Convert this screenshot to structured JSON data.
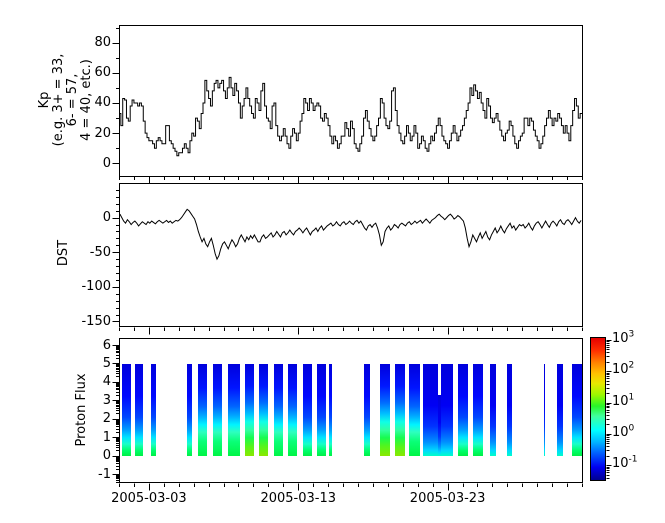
{
  "figure": {
    "background": "#ffffff",
    "line_color": "#000000",
    "x_axis": {
      "tick_labels": [
        "2005-03-03",
        "2005-03-13",
        "2005-03-23"
      ],
      "major_days": [
        2,
        12,
        22
      ],
      "minor_every_days": 1,
      "n_days": 31,
      "x_start": "2005-03-01",
      "x_end": "2005-04-01"
    }
  },
  "chart_data": [
    {
      "type": "line",
      "panel": "kp",
      "ylabel_lines": [
        "Kp",
        "(e.g. 3+ = 33,",
        "6- = 57,",
        "4 = 40, etc.)"
      ],
      "yticks": [
        0,
        20,
        40,
        60,
        80
      ],
      "ylim": [
        -8.4,
        91.7
      ],
      "step_hours": 3,
      "line_style": "step",
      "values": [
        33,
        25,
        43,
        42,
        30,
        28,
        38,
        42,
        40,
        40,
        38,
        40,
        38,
        28,
        20,
        17,
        15,
        15,
        13,
        10,
        15,
        17,
        15,
        13,
        13,
        25,
        25,
        15,
        13,
        10,
        8,
        5,
        7,
        7,
        10,
        13,
        10,
        7,
        15,
        20,
        18,
        30,
        28,
        23,
        33,
        40,
        55,
        48,
        43,
        38,
        48,
        53,
        55,
        50,
        53,
        55,
        48,
        43,
        50,
        57,
        50,
        45,
        53,
        48,
        40,
        30,
        38,
        43,
        50,
        43,
        38,
        33,
        30,
        43,
        40,
        35,
        48,
        53,
        38,
        30,
        28,
        23,
        38,
        40,
        25,
        18,
        15,
        18,
        23,
        18,
        13,
        10,
        18,
        23,
        20,
        15,
        20,
        28,
        33,
        43,
        40,
        35,
        43,
        40,
        35,
        38,
        40,
        38,
        30,
        28,
        33,
        30,
        25,
        18,
        13,
        18,
        15,
        10,
        13,
        18,
        18,
        27,
        23,
        18,
        28,
        23,
        13,
        10,
        8,
        13,
        18,
        30,
        35,
        28,
        23,
        18,
        15,
        18,
        25,
        30,
        43,
        40,
        30,
        25,
        23,
        28,
        48,
        50,
        35,
        25,
        20,
        15,
        13,
        18,
        25,
        20,
        15,
        18,
        25,
        20,
        10,
        13,
        18,
        15,
        10,
        8,
        13,
        18,
        15,
        20,
        25,
        30,
        25,
        18,
        15,
        13,
        10,
        15,
        20,
        25,
        20,
        15,
        18,
        22,
        25,
        30,
        35,
        40,
        50,
        45,
        52,
        48,
        43,
        47,
        40,
        35,
        30,
        43,
        38,
        30,
        27,
        30,
        33,
        28,
        22,
        18,
        15,
        20,
        22,
        28,
        25,
        18,
        13,
        10,
        15,
        18,
        20,
        30,
        30,
        25,
        30,
        28,
        22,
        18,
        15,
        10,
        13,
        18,
        25,
        30,
        35,
        30,
        25,
        30,
        28,
        33,
        30,
        25,
        20,
        25,
        20,
        15,
        25,
        35,
        43,
        38,
        30,
        33
      ]
    },
    {
      "type": "line",
      "panel": "dst",
      "ylabel": "DST",
      "yticks": [
        0,
        -50,
        -100,
        -150
      ],
      "ylim": [
        -158,
        50
      ],
      "step_hours": 3,
      "line_style": "line",
      "values": [
        5,
        0,
        -5,
        -8,
        -3,
        -6,
        -10,
        -7,
        -5,
        -8,
        -12,
        -9,
        -6,
        -8,
        -10,
        -6,
        -8,
        -5,
        -7,
        -9,
        -6,
        -4,
        -6,
        -8,
        -6,
        -4,
        -7,
        -5,
        -8,
        -6,
        -4,
        -5,
        -3,
        0,
        4,
        8,
        12,
        10,
        6,
        2,
        -2,
        -10,
        -20,
        -28,
        -35,
        -30,
        -38,
        -42,
        -35,
        -30,
        -40,
        -52,
        -60,
        -55,
        -45,
        -38,
        -35,
        -40,
        -45,
        -38,
        -32,
        -36,
        -42,
        -38,
        -30,
        -25,
        -30,
        -35,
        -28,
        -32,
        -26,
        -30,
        -25,
        -30,
        -35,
        -35,
        -28,
        -25,
        -30,
        -28,
        -25,
        -22,
        -28,
        -25,
        -20,
        -24,
        -28,
        -22,
        -20,
        -25,
        -22,
        -18,
        -22,
        -25,
        -20,
        -18,
        -15,
        -18,
        -22,
        -18,
        -15,
        -20,
        -25,
        -20,
        -18,
        -15,
        -20,
        -15,
        -12,
        -18,
        -15,
        -12,
        -10,
        -8,
        -12,
        -10,
        -6,
        -10,
        -12,
        -8,
        -6,
        -10,
        -8,
        -5,
        -8,
        -10,
        -6,
        -4,
        -8,
        -5,
        -10,
        -15,
        -18,
        -12,
        -10,
        -14,
        -10,
        -8,
        -15,
        -25,
        -40,
        -35,
        -20,
        -15,
        -12,
        -18,
        -15,
        -10,
        -12,
        -15,
        -10,
        -8,
        -10,
        -12,
        -8,
        -6,
        -10,
        -8,
        -5,
        -8,
        -6,
        -4,
        -8,
        -5,
        -2,
        -5,
        -8,
        -4,
        -2,
        0,
        3,
        5,
        2,
        0,
        -3,
        0,
        3,
        5,
        2,
        -2,
        0,
        3,
        1,
        -2,
        -5,
        -15,
        -30,
        -42,
        -35,
        -25,
        -30,
        -35,
        -28,
        -22,
        -30,
        -25,
        -20,
        -28,
        -32,
        -25,
        -20,
        -15,
        -22,
        -18,
        -12,
        -18,
        -22,
        -16,
        -12,
        -8,
        -15,
        -12,
        -18,
        -14,
        -10,
        -12,
        -10,
        -15,
        -12,
        -8,
        -14,
        -18,
        -12,
        -8,
        -6,
        -10,
        -15,
        -10,
        -5,
        -10,
        -14,
        -8,
        -5,
        -8,
        -12,
        -6,
        -3,
        -8,
        -10,
        -5,
        -3,
        -6,
        -10,
        -5,
        0,
        -5,
        -8,
        -4
      ]
    },
    {
      "type": "heatmap",
      "panel": "flux",
      "ylabel": "Proton Flux",
      "yticks": [
        -1,
        0,
        1,
        2,
        3,
        4,
        5,
        6
      ],
      "ylim": [
        -1.47,
        6.38
      ],
      "bar_y_range": [
        0,
        5
      ],
      "colorbar": {
        "scale": "log",
        "ticks": [
          {
            "base": "10",
            "exp": "3"
          },
          {
            "base": "10",
            "exp": "2"
          },
          {
            "base": "10",
            "exp": "1"
          },
          {
            "base": "10",
            "exp": "0"
          },
          {
            "base": "10",
            "exp": "-1"
          }
        ],
        "lim_exp": [
          -1.47,
          3.06
        ],
        "gradient": [
          [
            "#000090",
            0
          ],
          [
            "#0000f0",
            9
          ],
          [
            "#0060ff",
            19
          ],
          [
            "#00b8ff",
            27
          ],
          [
            "#00ffff",
            35
          ],
          [
            "#40ff9c",
            45
          ],
          [
            "#28f528",
            52
          ],
          [
            "#9cf800",
            60
          ],
          [
            "#e8e800",
            68
          ],
          [
            "#ffc000",
            75
          ],
          [
            "#ff8000",
            83
          ],
          [
            "#ff3000",
            91
          ],
          [
            "#e60000",
            100
          ]
        ]
      },
      "profiles": {
        "b": [
          [
            "#0000dc",
            0
          ],
          [
            "#0000f4",
            45
          ],
          [
            "#0034ff",
            68
          ],
          [
            "#0090ff",
            85
          ],
          [
            "#00d8ff",
            94
          ],
          [
            "#00ffc8",
            100
          ]
        ],
        "n": [
          [
            "#0000dc",
            0
          ],
          [
            "#0008ff",
            35
          ],
          [
            "#0048ff",
            58
          ],
          [
            "#00a0ff",
            72
          ],
          [
            "#00e4ff",
            80
          ],
          [
            "#18ffc8",
            87
          ],
          [
            "#00ff6c",
            94
          ],
          [
            "#00ef46",
            100
          ]
        ],
        "g": [
          [
            "#0000dc",
            0
          ],
          [
            "#0014ff",
            26
          ],
          [
            "#0064ff",
            46
          ],
          [
            "#00b4ff",
            58
          ],
          [
            "#00f4ff",
            66
          ],
          [
            "#2effbe",
            74
          ],
          [
            "#0aff78",
            84
          ],
          [
            "#00f545",
            100
          ]
        ],
        "y": [
          [
            "#0000dc",
            0
          ],
          [
            "#0018ff",
            24
          ],
          [
            "#006cff",
            42
          ],
          [
            "#00c0ff",
            54
          ],
          [
            "#10ffe6",
            63
          ],
          [
            "#32ffa0",
            72
          ],
          [
            "#18fb50",
            80
          ],
          [
            "#52f51e",
            89
          ],
          [
            "#8ae800",
            100
          ]
        ]
      },
      "bars": [
        {
          "d0": 0.2,
          "d1": 0.77,
          "p": "n"
        },
        {
          "d0": 1.07,
          "d1": 1.61,
          "p": "n"
        },
        {
          "d0": 2.14,
          "d1": 2.44,
          "p": "n"
        },
        {
          "d0": 4.53,
          "d1": 4.87,
          "p": "n"
        },
        {
          "d0": 5.31,
          "d1": 5.87,
          "p": "g"
        },
        {
          "d0": 6.31,
          "d1": 6.88,
          "p": "g"
        },
        {
          "d0": 7.32,
          "d1": 8.1,
          "p": "g"
        },
        {
          "d0": 8.44,
          "d1": 9.04,
          "p": "y"
        },
        {
          "d0": 9.39,
          "d1": 10.0,
          "p": "y"
        },
        {
          "d0": 10.38,
          "d1": 11.0,
          "p": "g"
        },
        {
          "d0": 11.34,
          "d1": 11.94,
          "p": "g"
        },
        {
          "d0": 12.3,
          "d1": 12.9,
          "p": "n"
        },
        {
          "d0": 13.28,
          "d1": 13.86,
          "p": "n"
        },
        {
          "d0": 14.08,
          "d1": 14.24,
          "p": "n"
        },
        {
          "d0": 16.4,
          "d1": 16.81,
          "p": "n"
        },
        {
          "d0": 17.48,
          "d1": 18.15,
          "p": "y"
        },
        {
          "d0": 18.48,
          "d1": 19.15,
          "p": "y"
        },
        {
          "d0": 19.42,
          "d1": 20.15,
          "p": "g"
        },
        {
          "d0": 20.35,
          "d1": 21.36,
          "p": "b"
        },
        {
          "d0": 21.36,
          "d1": 21.56,
          "p": "b",
          "t": 3.3
        },
        {
          "d0": 21.56,
          "d1": 22.36,
          "p": "b"
        },
        {
          "d0": 22.7,
          "d1": 23.37,
          "p": "n"
        },
        {
          "d0": 23.72,
          "d1": 24.39,
          "p": "n"
        },
        {
          "d0": 24.84,
          "d1": 25.24,
          "p": "b"
        },
        {
          "d0": 25.96,
          "d1": 26.29,
          "p": "b"
        },
        {
          "d0": 28.46,
          "d1": 28.53,
          "p": "b"
        },
        {
          "d0": 29.31,
          "d1": 29.71,
          "p": "b"
        },
        {
          "d0": 30.31,
          "d1": 30.98,
          "p": "n"
        }
      ]
    }
  ]
}
